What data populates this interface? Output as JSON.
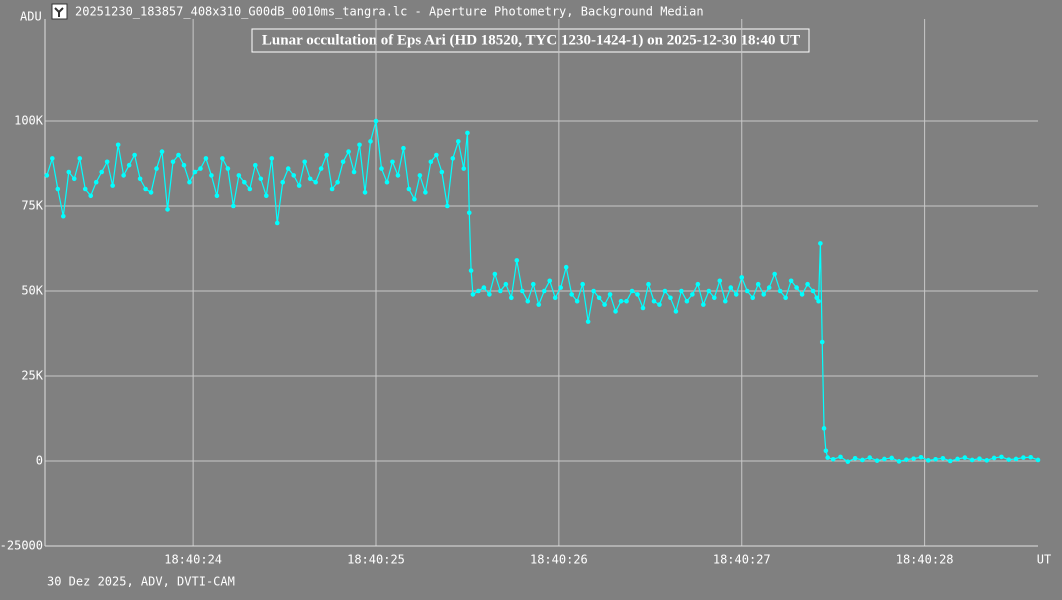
{
  "chart_data": {
    "type": "line",
    "window_title": "20251230_183857_408x310_G00dB_0010ms_tangra.lc - Aperture Photometry, Background Median",
    "title": "Lunar occultation of Eps Ari (HD 18520, TYC 1230-1424-1) on 2025-12-30  18:40 UT",
    "y_label": "ADU",
    "x_label": "UT",
    "footer": "30 Dez 2025, ADV, DVTI-CAM",
    "color": "#00ffff",
    "grid": true,
    "xlim": [
      23.19,
      28.62
    ],
    "ylim": [
      -25000,
      130000
    ],
    "xticks": [
      {
        "value": 24,
        "label": "18:40:24"
      },
      {
        "value": 25,
        "label": "18:40:25"
      },
      {
        "value": 26,
        "label": "18:40:26"
      },
      {
        "value": 27,
        "label": "18:40:27"
      },
      {
        "value": 28,
        "label": "18:40:28"
      }
    ],
    "yticks": [
      -25000,
      0,
      {
        "value": 25000,
        "label": "25K"
      },
      {
        "value": 50000,
        "label": "50K"
      },
      {
        "value": 75000,
        "label": "75K"
      },
      {
        "value": 100000,
        "label": "100K"
      }
    ],
    "x": [
      23.2,
      23.23,
      23.26,
      23.29,
      23.32,
      23.35,
      23.38,
      23.41,
      23.44,
      23.47,
      23.5,
      23.53,
      23.56,
      23.59,
      23.62,
      23.65,
      23.68,
      23.71,
      23.74,
      23.77,
      23.8,
      23.83,
      23.86,
      23.89,
      23.92,
      23.95,
      23.98,
      24.01,
      24.04,
      24.07,
      24.1,
      24.13,
      24.16,
      24.19,
      24.22,
      24.25,
      24.28,
      24.31,
      24.34,
      24.37,
      24.4,
      24.43,
      24.46,
      24.49,
      24.52,
      24.55,
      24.58,
      24.61,
      24.64,
      24.67,
      24.7,
      24.73,
      24.76,
      24.79,
      24.82,
      24.85,
      24.88,
      24.91,
      24.94,
      24.97,
      25.0,
      25.03,
      25.06,
      25.09,
      25.12,
      25.15,
      25.18,
      25.21,
      25.24,
      25.27,
      25.3,
      25.33,
      25.36,
      25.39,
      25.42,
      25.45,
      25.48,
      25.5,
      25.51,
      25.52,
      25.53,
      25.56,
      25.59,
      25.62,
      25.65,
      25.68,
      25.71,
      25.74,
      25.77,
      25.8,
      25.83,
      25.86,
      25.89,
      25.92,
      25.95,
      25.98,
      26.01,
      26.04,
      26.07,
      26.1,
      26.13,
      26.16,
      26.19,
      26.22,
      26.25,
      26.28,
      26.31,
      26.34,
      26.37,
      26.4,
      26.43,
      26.46,
      26.49,
      26.52,
      26.55,
      26.58,
      26.61,
      26.64,
      26.67,
      26.7,
      26.73,
      26.76,
      26.79,
      26.82,
      26.85,
      26.88,
      26.91,
      26.94,
      26.97,
      27.0,
      27.03,
      27.06,
      27.09,
      27.12,
      27.15,
      27.18,
      27.21,
      27.24,
      27.27,
      27.3,
      27.33,
      27.36,
      27.39,
      27.41,
      27.42,
      27.43,
      27.44,
      27.45,
      27.46,
      27.47,
      27.5,
      27.54,
      27.58,
      27.62,
      27.66,
      27.7,
      27.74,
      27.78,
      27.82,
      27.86,
      27.9,
      27.94,
      27.98,
      28.02,
      28.06,
      28.1,
      28.14,
      28.18,
      28.22,
      28.26,
      28.3,
      28.34,
      28.38,
      28.42,
      28.46,
      28.5,
      28.54,
      28.58,
      28.62
    ],
    "values": [
      84000,
      89000,
      80000,
      72000,
      85000,
      83000,
      89000,
      80000,
      78000,
      82000,
      85000,
      88000,
      81000,
      93000,
      84000,
      87000,
      90000,
      83000,
      80000,
      79000,
      86000,
      91000,
      74000,
      88000,
      90000,
      87000,
      82000,
      85000,
      86000,
      89000,
      84000,
      78000,
      89000,
      86000,
      75000,
      84000,
      82000,
      80000,
      87000,
      83000,
      78000,
      89000,
      70000,
      82000,
      86000,
      84000,
      81000,
      88000,
      83000,
      82000,
      86000,
      90000,
      80000,
      82000,
      88000,
      91000,
      85000,
      93000,
      79000,
      94000,
      100000,
      86000,
      82000,
      88000,
      84000,
      92000,
      80000,
      77000,
      84000,
      79000,
      88000,
      90000,
      85000,
      75000,
      89000,
      94000,
      86000,
      96500,
      73000,
      56000,
      49000,
      50000,
      51000,
      49000,
      55000,
      50000,
      52000,
      48000,
      59000,
      50000,
      47000,
      52000,
      46000,
      50000,
      53000,
      48000,
      51000,
      57000,
      49000,
      47000,
      52000,
      41000,
      50000,
      48000,
      46000,
      49000,
      44000,
      47000,
      47000,
      50000,
      49000,
      45000,
      52000,
      47000,
      46000,
      50000,
      48000,
      44000,
      50000,
      47000,
      49000,
      52000,
      46000,
      50000,
      48000,
      53000,
      47000,
      51000,
      49000,
      54000,
      50000,
      48000,
      52000,
      49000,
      51000,
      55000,
      50000,
      48000,
      53000,
      51000,
      49000,
      52000,
      50000,
      48000,
      47000,
      64000,
      35000,
      9600,
      3000,
      1000,
      500,
      1200,
      -200,
      800,
      300,
      1000,
      100,
      600,
      900,
      -100,
      400,
      700,
      1100,
      200,
      500,
      800,
      0,
      600,
      1000,
      300,
      700,
      200,
      900,
      1200,
      400,
      600,
      1000,
      1100,
      300
    ]
  }
}
